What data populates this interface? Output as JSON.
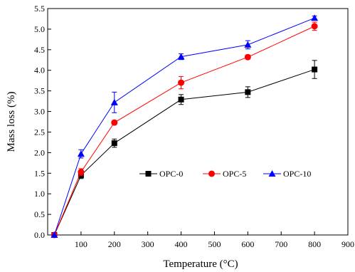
{
  "chart_data": {
    "type": "line",
    "title": "",
    "xlabel": "Temperature (°C)",
    "ylabel": "Mass loss (%)",
    "xlim": [
      0,
      900
    ],
    "ylim": [
      0,
      5.5
    ],
    "xticks": [
      100,
      200,
      300,
      400,
      500,
      600,
      700,
      800,
      900
    ],
    "yticks": [
      0.0,
      0.5,
      1.0,
      1.5,
      2.0,
      2.5,
      3.0,
      3.5,
      4.0,
      4.5,
      5.0,
      5.5
    ],
    "yticks_labels": [
      "0.0",
      "0.5",
      "1.0",
      "1.5",
      "2.0",
      "2.5",
      "3.0",
      "3.5",
      "4.0",
      "4.5",
      "5.0",
      "5.5"
    ],
    "x": [
      20,
      100,
      200,
      400,
      600,
      800
    ],
    "grid": false,
    "legend_position": "center-right",
    "series": [
      {
        "name": "OPC-0",
        "color": "#000000",
        "marker": "square",
        "values": [
          0.0,
          1.45,
          2.23,
          3.29,
          3.47,
          4.02
        ],
        "errors": [
          0.0,
          0.08,
          0.1,
          0.12,
          0.13,
          0.22
        ]
      },
      {
        "name": "OPC-5",
        "color": "#ff0000",
        "marker": "circle",
        "values": [
          0.0,
          1.53,
          2.73,
          3.7,
          4.32,
          5.07
        ],
        "errors": [
          0.0,
          0.08,
          0.05,
          0.15,
          0.05,
          0.1
        ]
      },
      {
        "name": "OPC-10",
        "color": "#0000ff",
        "marker": "triangle",
        "values": [
          0.0,
          1.97,
          3.22,
          4.33,
          4.62,
          5.27
        ],
        "errors": [
          0.0,
          0.1,
          0.25,
          0.07,
          0.1,
          0.05
        ]
      }
    ]
  }
}
